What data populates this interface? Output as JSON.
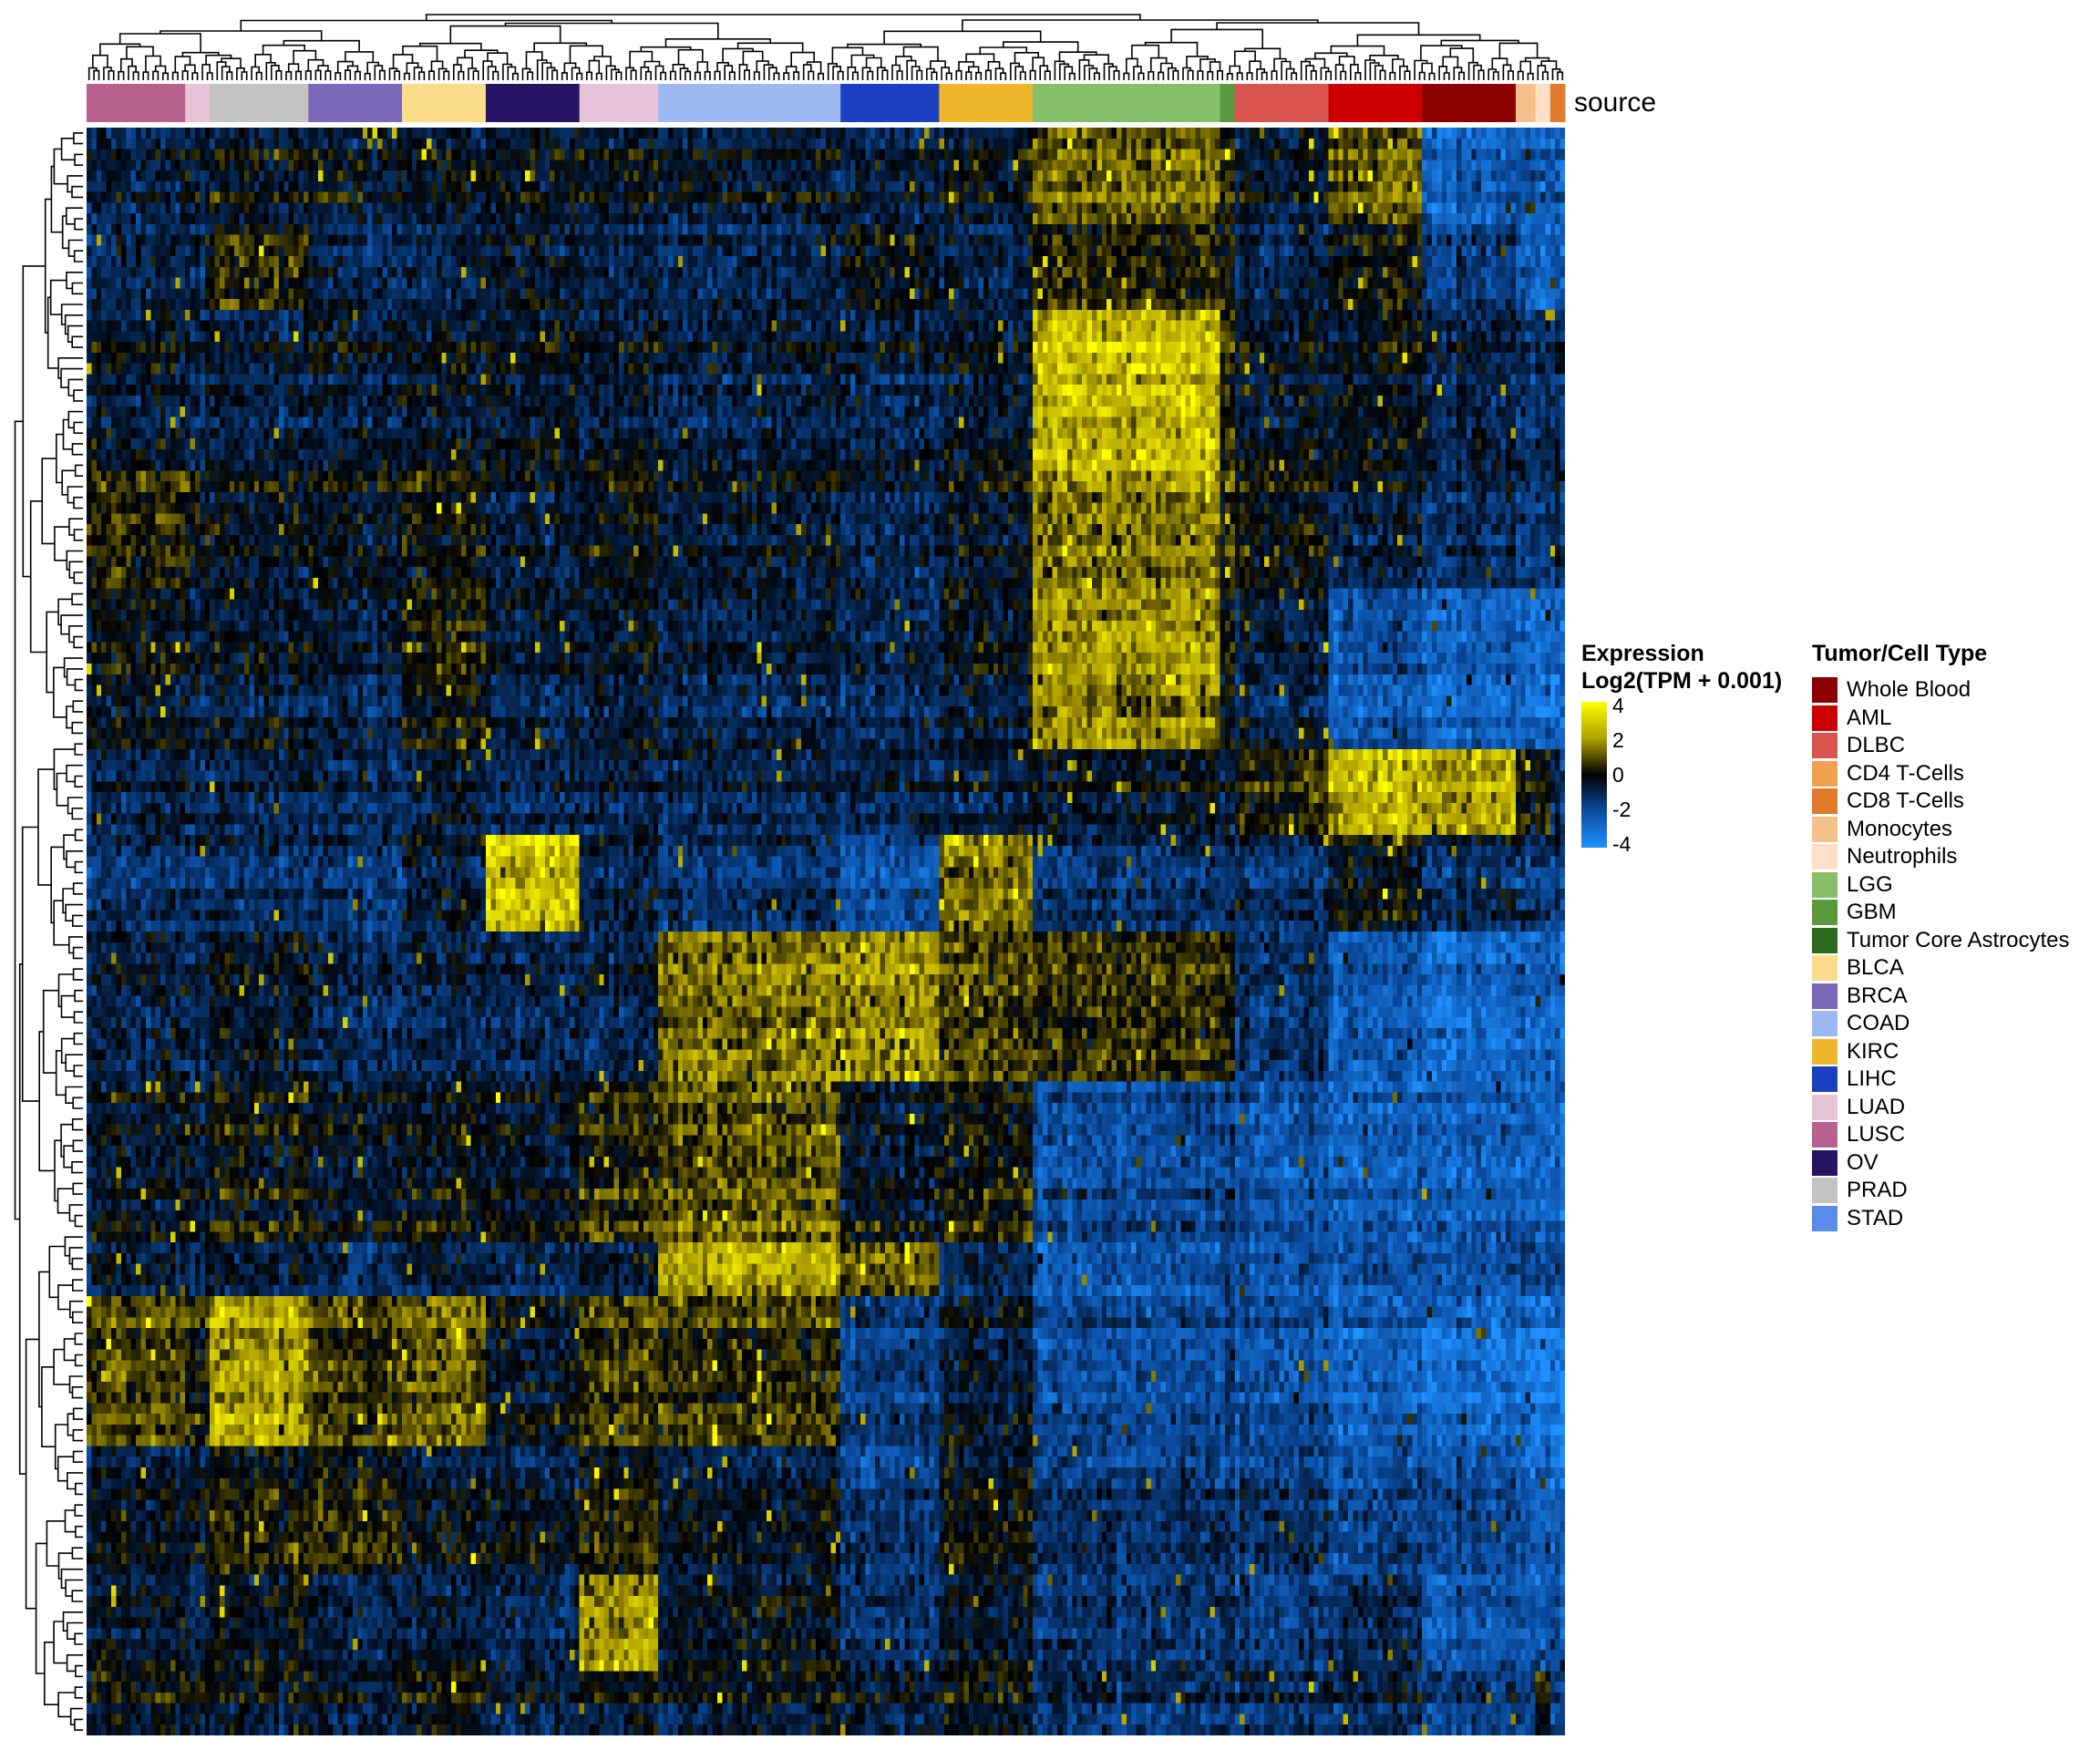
{
  "chart_data": {
    "type": "heatmap",
    "annotation_track_label": "source",
    "expression_legend": {
      "title_line1": "Expression",
      "title_line2": "Log2(TPM + 0.001)",
      "ticks": [
        4,
        2,
        0,
        -2,
        -4
      ],
      "tick_labels": [
        "4",
        "2",
        "0",
        "-2",
        "-4"
      ],
      "value_range": [
        -4,
        4
      ],
      "colors": [
        "#1e90ff",
        "#0b4ca0",
        "#000000",
        "#b0a000",
        "#ffff00"
      ]
    },
    "type_legend": {
      "title": "Tumor/Cell Type",
      "items": [
        {
          "label": "Whole Blood",
          "color": "#8b0000"
        },
        {
          "label": "AML",
          "color": "#cc0000"
        },
        {
          "label": "DLBC",
          "color": "#d9534f"
        },
        {
          "label": "CD4 T-Cells",
          "color": "#f0a050"
        },
        {
          "label": "CD8 T-Cells",
          "color": "#e07b2c"
        },
        {
          "label": "Monocytes",
          "color": "#f5c08a"
        },
        {
          "label": "Neutrophils",
          "color": "#fde0c5"
        },
        {
          "label": "LGG",
          "color": "#86bf6a"
        },
        {
          "label": "GBM",
          "color": "#5a9a3c"
        },
        {
          "label": "Tumor Core Astrocytes",
          "color": "#2e6a1e"
        },
        {
          "label": "BLCA",
          "color": "#fbdc8a"
        },
        {
          "label": "BRCA",
          "color": "#7b68b8"
        },
        {
          "label": "COAD",
          "color": "#9bb8f0"
        },
        {
          "label": "KIRC",
          "color": "#eeb72b"
        },
        {
          "label": "LIHC",
          "color": "#1a3fbf"
        },
        {
          "label": "LUAD",
          "color": "#e6c3d6"
        },
        {
          "label": "LUSC",
          "color": "#b8608e"
        },
        {
          "label": "OV",
          "color": "#241462"
        },
        {
          "label": "PRAD",
          "color": "#c3c3c3"
        },
        {
          "label": "STAD",
          "color": "#5b8be8"
        }
      ]
    },
    "column_groups": [
      {
        "type": "LUSC",
        "fraction": 0.068
      },
      {
        "type": "LUAD",
        "fraction": 0.015
      },
      {
        "type": "PRAD",
        "fraction": 0.065
      },
      {
        "type": "BRCA",
        "fraction": 0.064
      },
      {
        "type": "BLCA",
        "fraction": 0.057
      },
      {
        "type": "OV",
        "fraction": 0.063
      },
      {
        "type": "LUAD",
        "fraction": 0.052
      },
      {
        "type": "COAD",
        "fraction": 0.124
      },
      {
        "type": "LIHC",
        "fraction": 0.065
      },
      {
        "type": "KIRC",
        "fraction": 0.063
      },
      {
        "type": "LGG",
        "fraction": 0.125
      },
      {
        "type": "GBM",
        "fraction": 0.009
      },
      {
        "type": "DLBC",
        "fraction": 0.063
      },
      {
        "type": "AML",
        "fraction": 0.064
      },
      {
        "type": "Whole Blood",
        "fraction": 0.062
      },
      {
        "type": "Monocytes",
        "fraction": 0.012
      },
      {
        "type": "Neutrophils",
        "fraction": 0.01
      },
      {
        "type": "CD8 T-Cells",
        "fraction": 0.019
      }
    ],
    "row_blocks": [
      {
        "fraction": 0.06,
        "profile": [
          0.0,
          0.3,
          0.4,
          0.4,
          0.3,
          0.4,
          0.3,
          0.2,
          0.0,
          0.3,
          1.8,
          1.0,
          0.3,
          1.6,
          -1.5,
          -1.4,
          -1.6,
          -1.5
        ]
      },
      {
        "fraction": 0.05,
        "profile": [
          0.0,
          0.0,
          1.3,
          0.0,
          0.0,
          0.5,
          0.0,
          0.0,
          0.6,
          0.0,
          1.2,
          0.8,
          0.0,
          0.8,
          -0.5,
          -1.8,
          -1.8,
          -1.5
        ]
      },
      {
        "fraction": 0.1,
        "profile": [
          0.2,
          0.0,
          0.0,
          0.3,
          0.2,
          0.4,
          0.2,
          0.0,
          0.0,
          0.2,
          3.2,
          1.2,
          0.4,
          0.4,
          0.0,
          -0.5,
          -0.3,
          -0.2
        ]
      },
      {
        "fraction": 0.07,
        "profile": [
          1.2,
          0.8,
          0.4,
          0.6,
          0.8,
          0.2,
          0.6,
          0.3,
          0.0,
          0.4,
          2.2,
          1.0,
          0.8,
          0.0,
          -0.2,
          -0.6,
          -0.4,
          -0.3
        ]
      },
      {
        "fraction": 0.1,
        "profile": [
          0.6,
          0.3,
          0.4,
          0.3,
          1.0,
          0.3,
          0.4,
          0.1,
          0.0,
          0.4,
          2.6,
          0.8,
          0.2,
          -1.2,
          -1.5,
          -1.8,
          -2.0,
          -1.6
        ]
      },
      {
        "fraction": 0.05,
        "profile": [
          0.0,
          0.0,
          0.0,
          0.0,
          0.2,
          0.0,
          0.0,
          0.0,
          0.0,
          0.0,
          0.4,
          0.0,
          1.2,
          3.2,
          3.0,
          0.8,
          1.0,
          0.0
        ]
      },
      {
        "fraction": 0.06,
        "profile": [
          -0.4,
          -0.4,
          -0.4,
          -0.4,
          0.2,
          3.4,
          0.0,
          -0.4,
          -1.2,
          2.0,
          -0.4,
          -0.5,
          -0.3,
          0.6,
          -0.2,
          -0.6,
          -0.6,
          -0.6
        ]
      },
      {
        "fraction": 0.09,
        "profile": [
          0.2,
          0.0,
          0.4,
          0.0,
          0.0,
          0.0,
          0.0,
          2.2,
          2.6,
          1.6,
          1.4,
          1.0,
          -0.3,
          -1.4,
          -1.8,
          -1.6,
          -1.6,
          -1.6
        ]
      },
      {
        "fraction": 0.1,
        "profile": [
          0.4,
          0.4,
          0.8,
          0.6,
          0.6,
          0.6,
          1.2,
          1.8,
          0.4,
          0.8,
          -1.0,
          -0.6,
          -1.2,
          -1.6,
          -1.4,
          -1.8,
          -1.6,
          -1.6
        ]
      },
      {
        "fraction": 0.03,
        "profile": [
          0.3,
          0.0,
          0.2,
          0.0,
          0.2,
          0.0,
          0.3,
          3.0,
          2.0,
          0.0,
          -1.2,
          -0.6,
          -1.0,
          -1.2,
          -1.0,
          -0.8,
          -0.8,
          -0.8
        ]
      },
      {
        "fraction": 0.09,
        "profile": [
          1.6,
          1.0,
          2.8,
          1.6,
          2.0,
          0.6,
          1.6,
          1.4,
          -0.5,
          0.3,
          -1.0,
          -0.6,
          -1.0,
          -1.6,
          -1.8,
          -2.0,
          -2.4,
          -2.0
        ]
      },
      {
        "fraction": 0.08,
        "profile": [
          0.4,
          0.4,
          1.0,
          1.2,
          0.4,
          0.4,
          1.0,
          0.4,
          -0.6,
          0.6,
          -0.4,
          -0.4,
          -0.4,
          -1.0,
          -0.8,
          -1.4,
          -1.6,
          -1.6
        ]
      },
      {
        "fraction": 0.06,
        "profile": [
          0.4,
          0.0,
          0.6,
          0.2,
          0.2,
          0.0,
          2.6,
          0.6,
          -0.3,
          0.4,
          -0.4,
          -0.2,
          -0.6,
          -0.2,
          -1.2,
          -1.4,
          -1.4,
          -1.0
        ]
      },
      {
        "fraction": 0.06,
        "profile": [
          0.8,
          0.6,
          0.6,
          0.5,
          0.8,
          0.3,
          0.6,
          0.6,
          0.4,
          0.8,
          -0.2,
          0.0,
          0.0,
          0.0,
          -0.4,
          -0.6,
          0.8,
          -0.4
        ]
      }
    ]
  }
}
